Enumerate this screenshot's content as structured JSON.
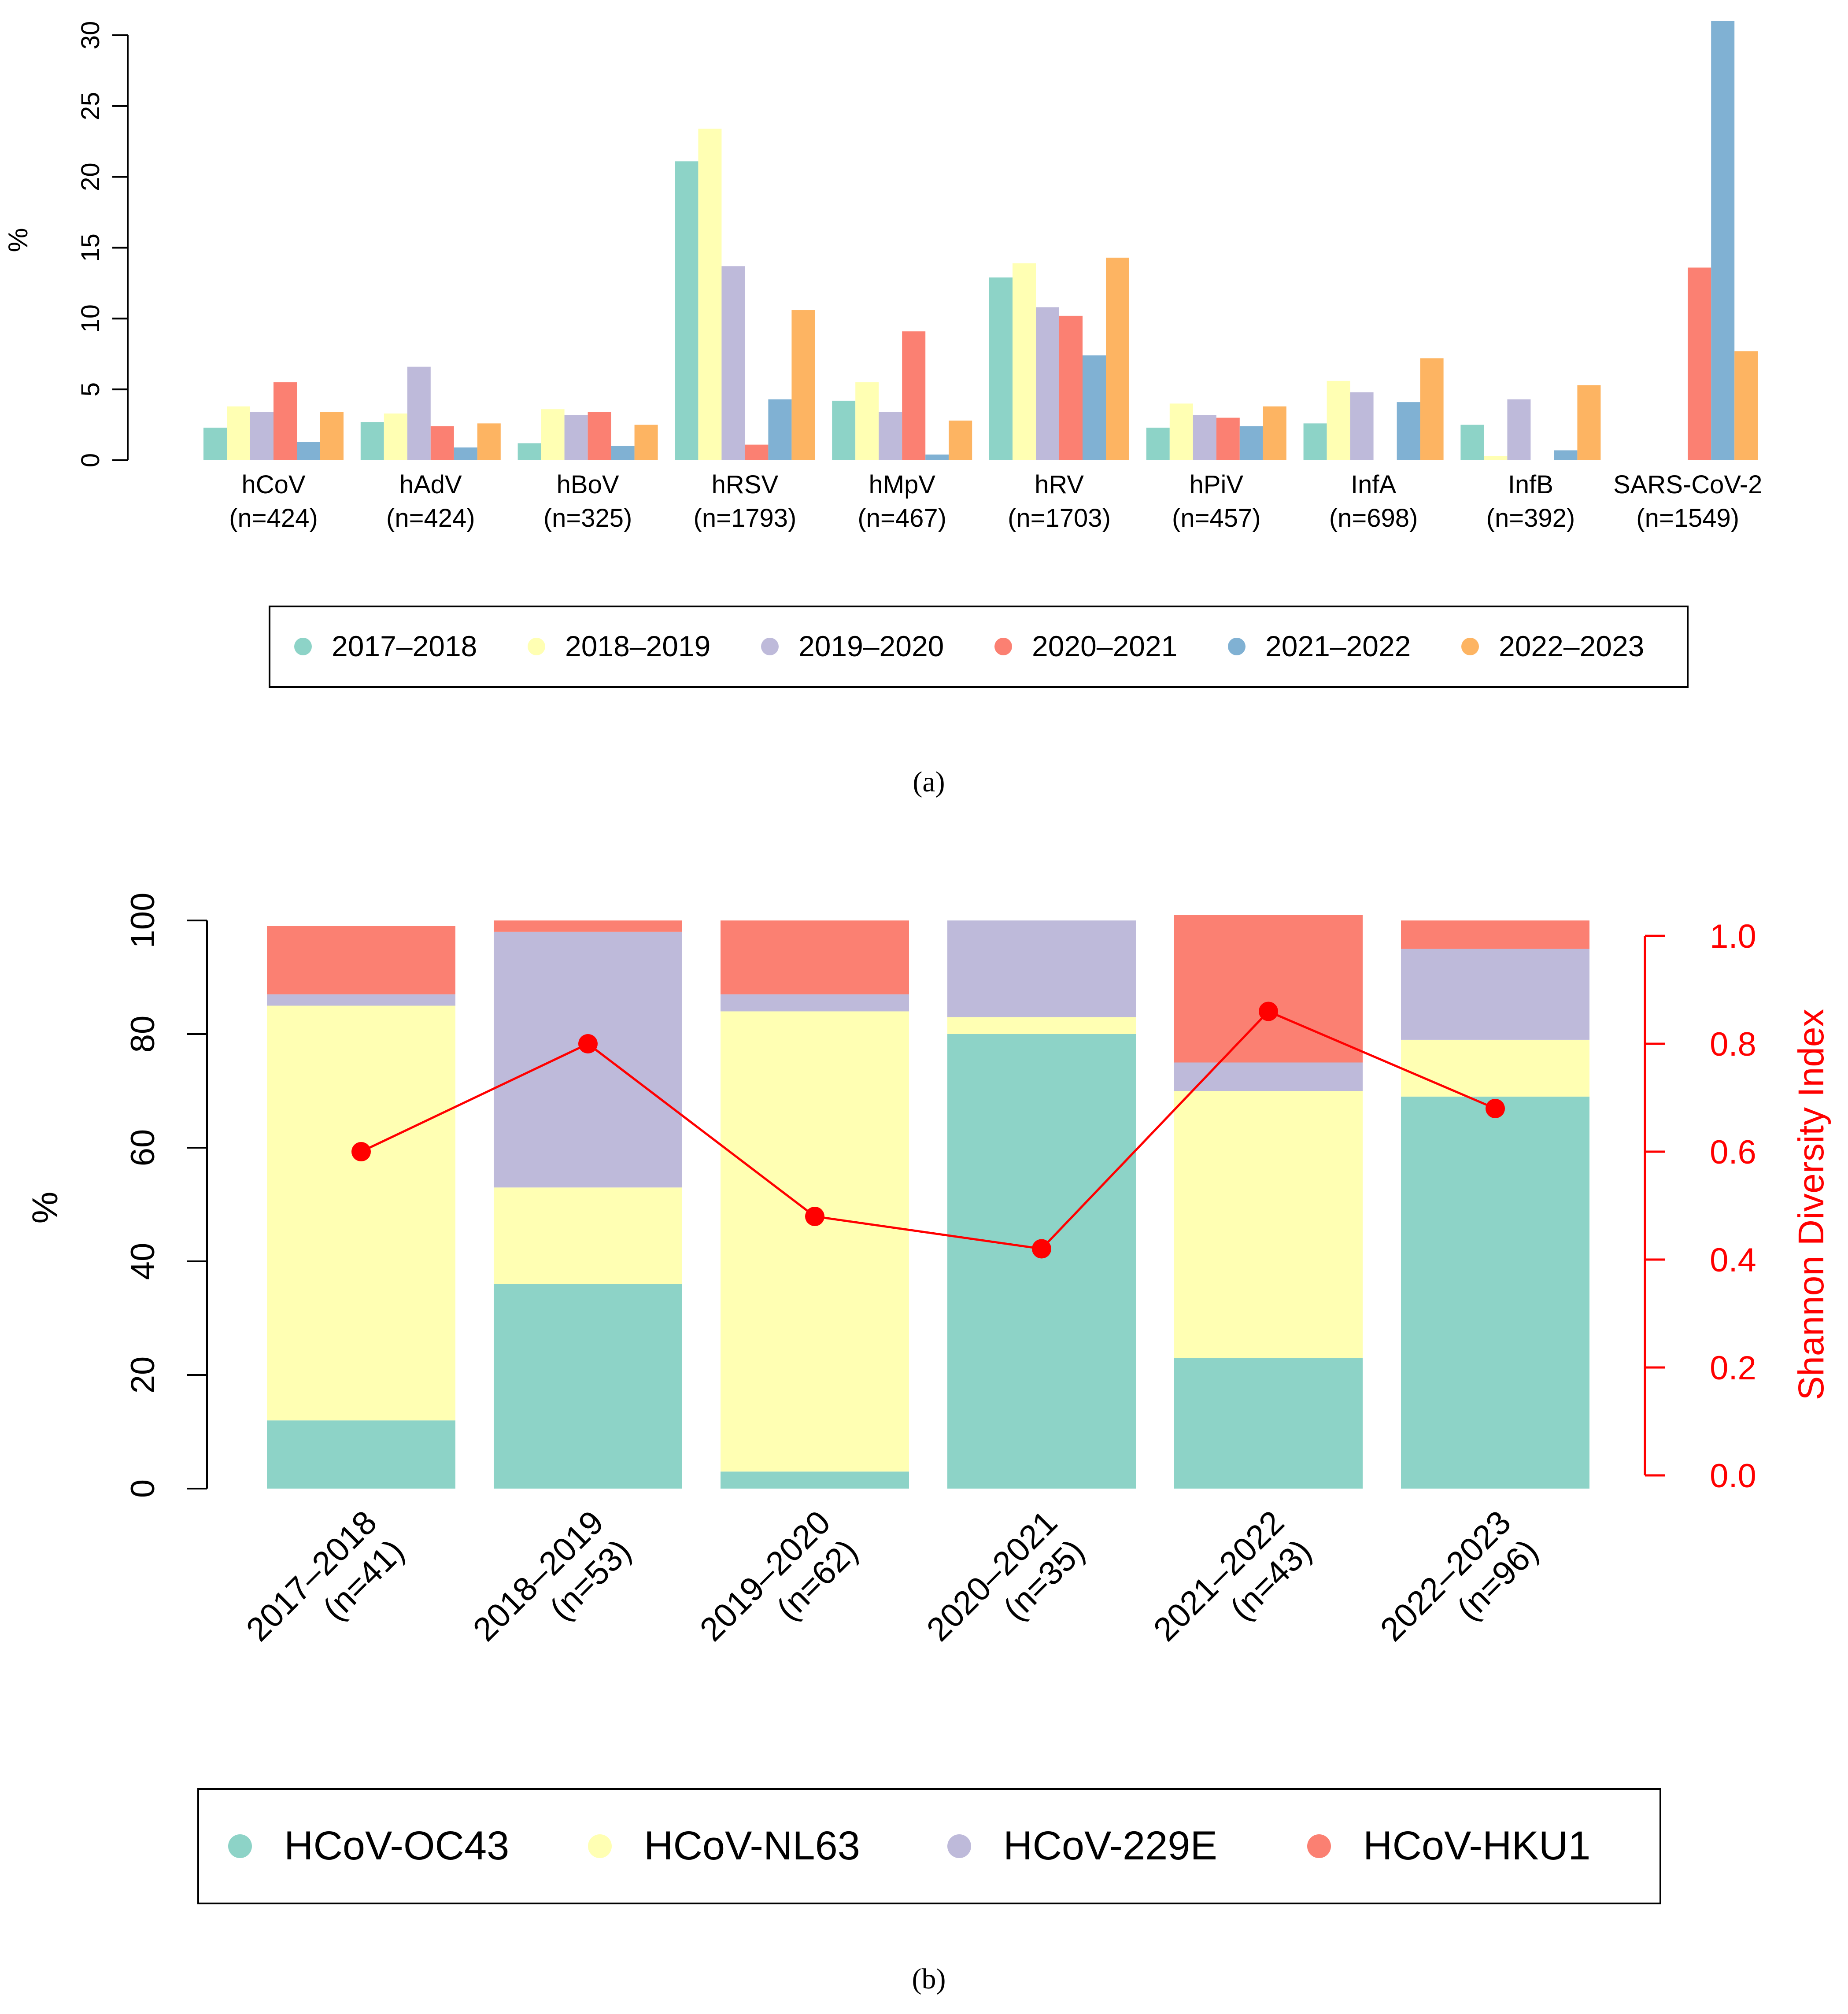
{
  "colors": {
    "s2017": "#8dd3c7",
    "s2018": "#ffffb3",
    "s2019": "#bebada",
    "s2020": "#fb8072",
    "s2021": "#80b1d3",
    "s2022": "#fdb462",
    "oc43": "#8dd3c7",
    "nl63": "#ffffb3",
    "e229": "#bebada",
    "hku1": "#fb8072",
    "shannon": "#ff0000"
  },
  "chart_data": [
    {
      "type": "bar",
      "panel": "a",
      "caption": "(a)",
      "ylabel": "%",
      "ylim": [
        0,
        30
      ],
      "yticks": [
        "0",
        "5",
        "10",
        "15",
        "20",
        "25",
        "30"
      ],
      "categories": [
        "hCoV",
        "hAdV",
        "hBoV",
        "hRSV",
        "hMpV",
        "hRV",
        "hPiV",
        "InfA",
        "InfB",
        "SARS-CoV-2"
      ],
      "category_n": [
        "(n=424)",
        "(n=424)",
        "(n=325)",
        "(n=1793)",
        "(n=467)",
        "(n=1703)",
        "(n=457)",
        "(n=698)",
        "(n=392)",
        "(n=1549)"
      ],
      "series": [
        {
          "name": "2017–2018",
          "color_key": "s2017",
          "values": [
            2.3,
            2.7,
            1.2,
            21.1,
            4.2,
            12.9,
            2.3,
            2.6,
            2.5,
            0
          ]
        },
        {
          "name": "2018–2019",
          "color_key": "s2018",
          "values": [
            3.8,
            3.3,
            3.6,
            23.4,
            5.5,
            13.9,
            4.0,
            5.6,
            0.3,
            0
          ]
        },
        {
          "name": "2019–2020",
          "color_key": "s2019",
          "values": [
            3.4,
            6.6,
            3.2,
            13.7,
            3.4,
            10.8,
            3.2,
            4.8,
            4.3,
            0
          ]
        },
        {
          "name": "2020–2021",
          "color_key": "s2020",
          "values": [
            5.5,
            2.4,
            3.4,
            1.1,
            9.1,
            10.2,
            3.0,
            0,
            0,
            13.6
          ]
        },
        {
          "name": "2021–2022",
          "color_key": "s2021",
          "values": [
            1.3,
            0.9,
            1.0,
            4.3,
            0.4,
            7.4,
            2.4,
            4.1,
            0.7,
            31.0
          ]
        },
        {
          "name": "2022–2023",
          "color_key": "s2022",
          "values": [
            3.4,
            2.6,
            2.5,
            10.6,
            2.8,
            14.3,
            3.8,
            7.2,
            5.3,
            7.7
          ]
        }
      ],
      "legend": [
        "2017–2018",
        "2018–2019",
        "2019–2020",
        "2020–2021",
        "2021–2022",
        "2022–2023"
      ]
    },
    {
      "type": "bar",
      "stacked": true,
      "panel": "b",
      "caption": "(b)",
      "ylabel": "%",
      "ylabel_right": "Shannon Diversity Index",
      "ylim": [
        0,
        100
      ],
      "ylim_right": [
        0,
        1
      ],
      "yticks": [
        "0",
        "20",
        "40",
        "60",
        "80",
        "100"
      ],
      "yticks_right": [
        "0.0",
        "0.2",
        "0.4",
        "0.6",
        "0.8",
        "1.0"
      ],
      "categories": [
        "2017–2018",
        "2018–2019",
        "2019–2020",
        "2020–2021",
        "2021–2022",
        "2022–2023"
      ],
      "category_n": [
        "(n=41)",
        "(n=53)",
        "(n=62)",
        "(n=35)",
        "(n=43)",
        "(n=96)"
      ],
      "series": [
        {
          "name": "HCoV-OC43",
          "color_key": "oc43",
          "values": [
            12,
            36,
            3,
            80,
            23,
            69
          ]
        },
        {
          "name": "HCoV-NL63",
          "color_key": "nl63",
          "values": [
            73,
            17,
            81,
            3,
            47,
            10
          ]
        },
        {
          "name": "HCoV-229E",
          "color_key": "e229",
          "values": [
            2,
            45,
            3,
            17,
            5,
            16
          ]
        },
        {
          "name": "HCoV-HKU1",
          "color_key": "hku1",
          "values": [
            12,
            2,
            13,
            0,
            26,
            5
          ]
        }
      ],
      "line_series": {
        "name": "Shannon Diversity Index",
        "values": [
          0.6,
          0.8,
          0.48,
          0.42,
          0.86,
          0.68
        ]
      },
      "legend": [
        "HCoV-OC43",
        "HCoV-NL63",
        "HCoV-229E",
        "HCoV-HKU1"
      ]
    }
  ]
}
